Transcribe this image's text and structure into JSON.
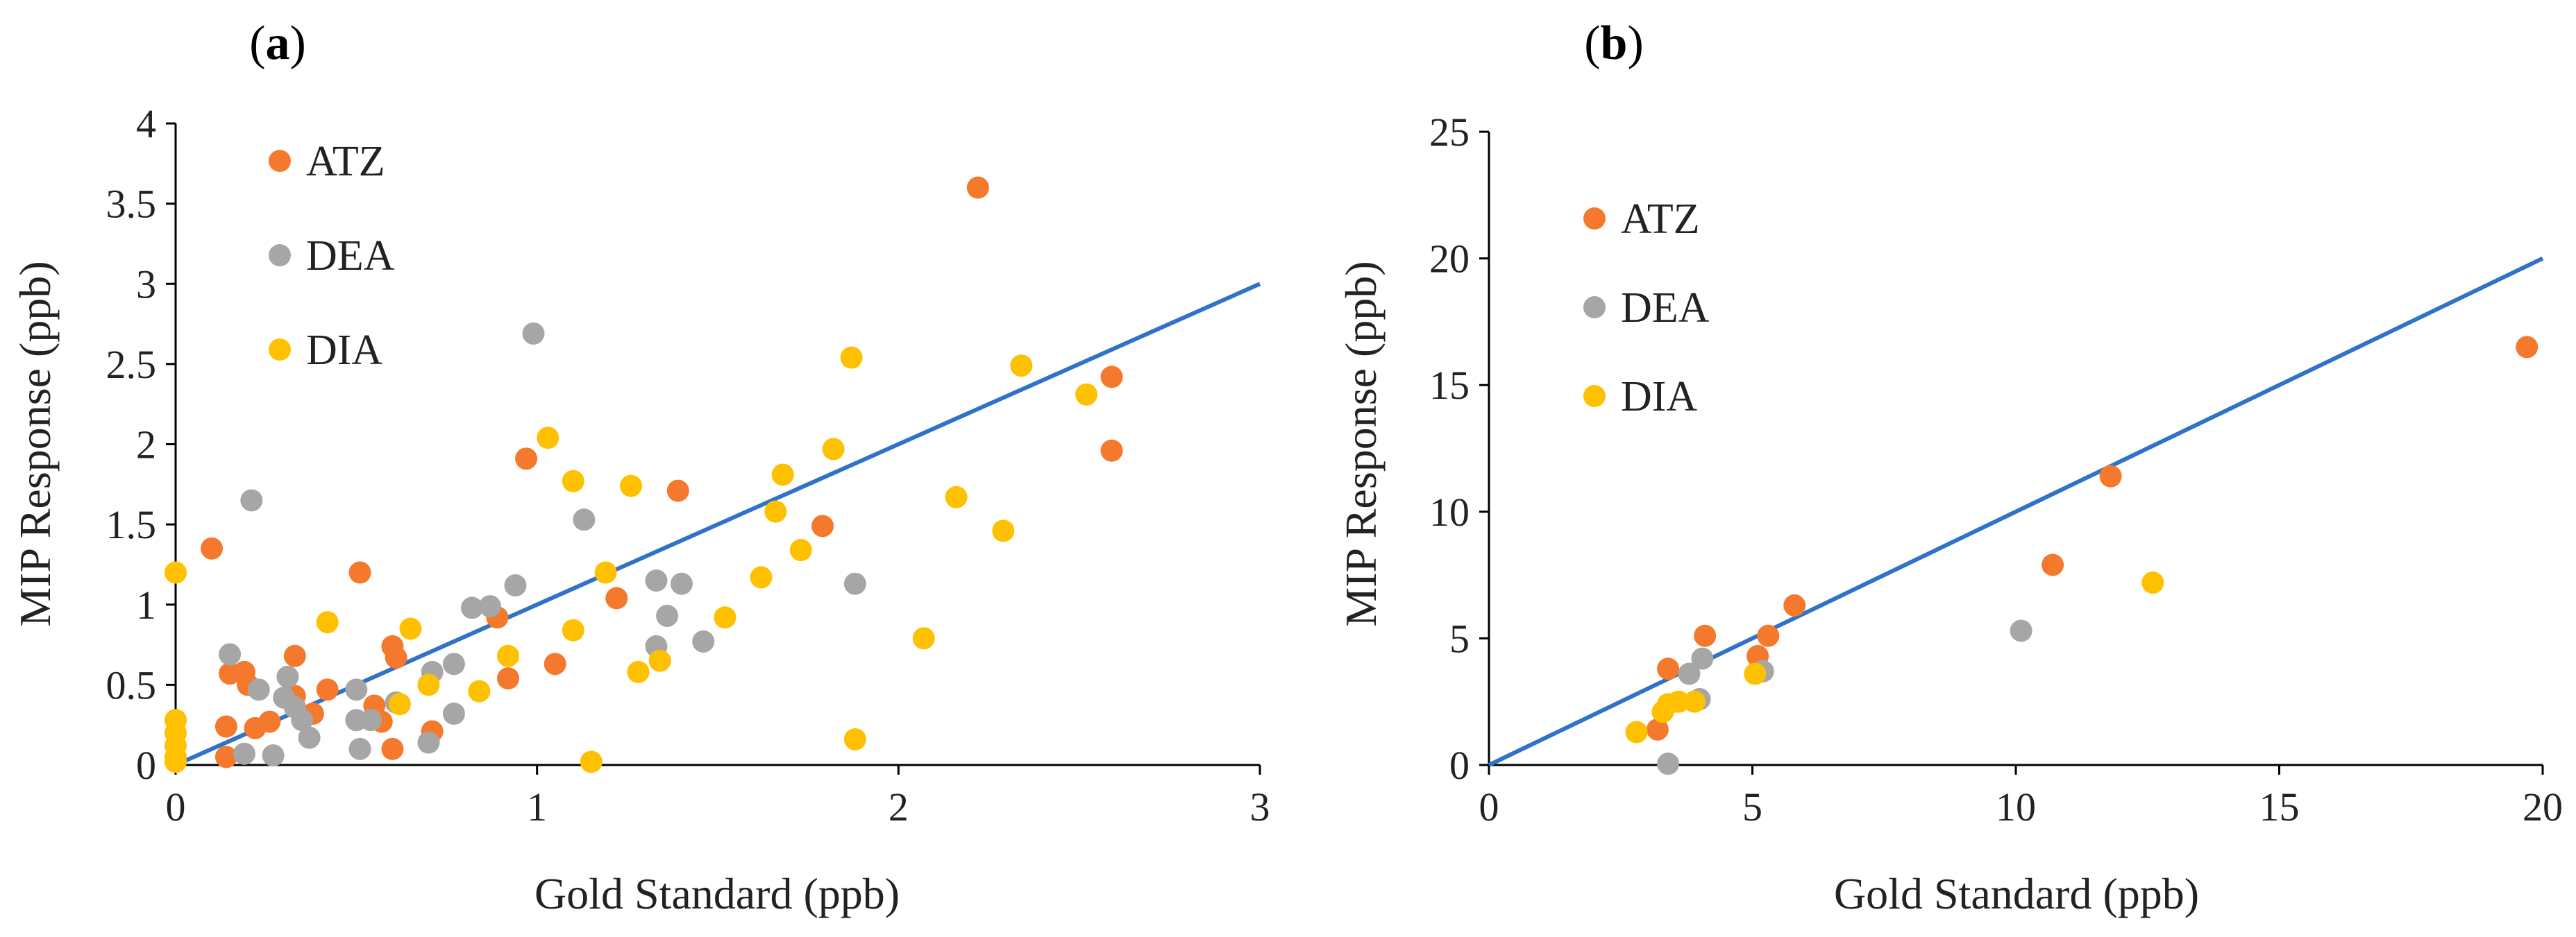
{
  "chart_data": [
    {
      "type": "scatter",
      "panel_label": "a",
      "xlabel": "Gold Standard (ppb)",
      "ylabel": "MIP Response (ppb)",
      "xlim": [
        0,
        3
      ],
      "ylim": [
        0,
        4
      ],
      "x_ticks": [
        "0",
        "1",
        "2",
        "3"
      ],
      "y_ticks": [
        "0",
        "0.5",
        "1",
        "1.5",
        "2",
        "2.5",
        "3",
        "3.5",
        "4"
      ],
      "legend_position": "top-left",
      "reference_line": {
        "x": [
          0,
          3
        ],
        "y": [
          0,
          3
        ],
        "color": "#2f72c8"
      },
      "series": [
        {
          "name": "ATZ",
          "color": "#f4792d",
          "points": [
            [
              0.1,
              1.35
            ],
            [
              0.14,
              0.24
            ],
            [
              0.14,
              0.05
            ],
            [
              0.15,
              0.57
            ],
            [
              0.19,
              0.58
            ],
            [
              0.2,
              0.5
            ],
            [
              0.22,
              0.23
            ],
            [
              0.26,
              0.27
            ],
            [
              0.33,
              0.68
            ],
            [
              0.33,
              0.43
            ],
            [
              0.38,
              0.32
            ],
            [
              0.42,
              0.47
            ],
            [
              0.51,
              1.2
            ],
            [
              0.55,
              0.37
            ],
            [
              0.57,
              0.27
            ],
            [
              0.6,
              0.74
            ],
            [
              0.6,
              0.1
            ],
            [
              0.61,
              0.67
            ],
            [
              0.71,
              0.21
            ],
            [
              0.89,
              0.92
            ],
            [
              0.92,
              0.54
            ],
            [
              0.97,
              1.91
            ],
            [
              1.05,
              0.63
            ],
            [
              1.22,
              1.04
            ],
            [
              1.39,
              1.71
            ],
            [
              1.79,
              1.49
            ],
            [
              2.22,
              3.6
            ],
            [
              2.59,
              2.42
            ],
            [
              2.59,
              1.96
            ]
          ]
        },
        {
          "name": "DEA",
          "color": "#a6a6a6",
          "points": [
            [
              0.15,
              0.69
            ],
            [
              0.19,
              0.07
            ],
            [
              0.21,
              1.65
            ],
            [
              0.23,
              0.47
            ],
            [
              0.27,
              0.06
            ],
            [
              0.3,
              0.42
            ],
            [
              0.31,
              0.55
            ],
            [
              0.33,
              0.36
            ],
            [
              0.35,
              0.28
            ],
            [
              0.37,
              0.17
            ],
            [
              0.5,
              0.47
            ],
            [
              0.5,
              0.28
            ],
            [
              0.51,
              0.1
            ],
            [
              0.54,
              0.28
            ],
            [
              0.61,
              0.39
            ],
            [
              0.7,
              0.14
            ],
            [
              0.71,
              0.58
            ],
            [
              0.77,
              0.63
            ],
            [
              0.77,
              0.32
            ],
            [
              0.82,
              0.98
            ],
            [
              0.87,
              0.99
            ],
            [
              0.94,
              1.12
            ],
            [
              0.99,
              2.69
            ],
            [
              1.13,
              1.53
            ],
            [
              1.33,
              1.15
            ],
            [
              1.33,
              0.74
            ],
            [
              1.36,
              0.93
            ],
            [
              1.4,
              1.13
            ],
            [
              1.46,
              0.77
            ],
            [
              1.88,
              1.13
            ]
          ]
        },
        {
          "name": "DIA",
          "color": "#ffc000",
          "points": [
            [
              0,
              1.2
            ],
            [
              0,
              0.28
            ],
            [
              0,
              0.2
            ],
            [
              0,
              0.12
            ],
            [
              0,
              0.05
            ],
            [
              0,
              0.02
            ],
            [
              0.42,
              0.89
            ],
            [
              0.62,
              0.38
            ],
            [
              0.65,
              0.85
            ],
            [
              0.7,
              0.5
            ],
            [
              0.84,
              0.46
            ],
            [
              0.92,
              0.68
            ],
            [
              1.03,
              2.04
            ],
            [
              1.1,
              1.77
            ],
            [
              1.1,
              0.84
            ],
            [
              1.15,
              0.02
            ],
            [
              1.19,
              1.2
            ],
            [
              1.26,
              1.74
            ],
            [
              1.28,
              0.58
            ],
            [
              1.34,
              0.65
            ],
            [
              1.52,
              0.92
            ],
            [
              1.62,
              1.17
            ],
            [
              1.66,
              1.58
            ],
            [
              1.68,
              1.81
            ],
            [
              1.73,
              1.34
            ],
            [
              1.82,
              1.97
            ],
            [
              1.87,
              2.54
            ],
            [
              1.88,
              0.16
            ],
            [
              2.07,
              0.79
            ],
            [
              2.16,
              1.67
            ],
            [
              2.29,
              1.46
            ],
            [
              2.34,
              2.49
            ],
            [
              2.52,
              2.31
            ]
          ]
        }
      ]
    },
    {
      "type": "scatter",
      "panel_label": "b",
      "xlabel": "Gold Standard (ppb)",
      "ylabel": "MIP Response (ppb)",
      "xlim": [
        0,
        20
      ],
      "ylim": [
        0,
        25
      ],
      "x_ticks": [
        "0",
        "5",
        "10",
        "15",
        "20"
      ],
      "y_ticks": [
        "0",
        "5",
        "10",
        "15",
        "20",
        "25"
      ],
      "legend_position": "upper-left",
      "reference_line": {
        "x": [
          0,
          20
        ],
        "y": [
          0,
          20
        ],
        "color": "#2f72c8"
      },
      "series": [
        {
          "name": "ATZ",
          "color": "#f4792d",
          "points": [
            [
              3.2,
              1.4
            ],
            [
              3.4,
              3.8
            ],
            [
              4.1,
              5.1
            ],
            [
              5.1,
              4.3
            ],
            [
              5.3,
              5.1
            ],
            [
              5.8,
              6.3
            ],
            [
              10.7,
              7.9
            ],
            [
              11.8,
              11.4
            ],
            [
              19.7,
              16.5
            ]
          ]
        },
        {
          "name": "DEA",
          "color": "#a6a6a6",
          "points": [
            [
              3.4,
              0.05
            ],
            [
              3.8,
              3.6
            ],
            [
              4.0,
              2.6
            ],
            [
              4.05,
              4.2
            ],
            [
              5.2,
              3.7
            ],
            [
              10.1,
              5.3
            ]
          ]
        },
        {
          "name": "DIA",
          "color": "#ffc000",
          "points": [
            [
              2.8,
              1.3
            ],
            [
              3.3,
              2.1
            ],
            [
              3.4,
              2.4
            ],
            [
              3.6,
              2.5
            ],
            [
              3.9,
              2.5
            ],
            [
              5.05,
              3.6
            ],
            [
              12.6,
              7.2
            ]
          ]
        }
      ]
    }
  ]
}
